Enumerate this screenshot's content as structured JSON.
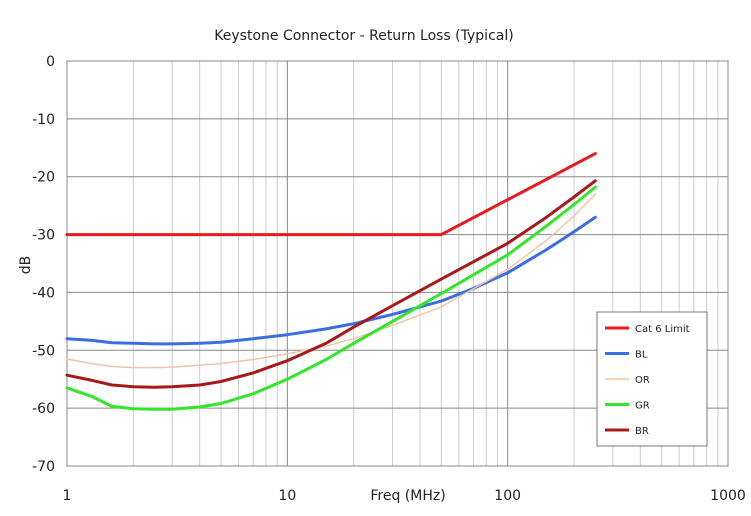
{
  "chart_data": {
    "type": "line",
    "title": "Keystone Connector  -  Return Loss (Typical)",
    "xlabel": "Freq (MHz)",
    "ylabel": "dB",
    "x_scale": "log",
    "xlim": [
      1,
      1000
    ],
    "ylim": [
      -70,
      0
    ],
    "x_ticks": [
      1,
      10,
      100,
      1000
    ],
    "x_tick_labels": [
      "1",
      "10",
      "100",
      "1000"
    ],
    "y_ticks": [
      0,
      -10,
      -20,
      -30,
      -40,
      -50,
      -60,
      -70
    ],
    "y_tick_labels": [
      "0",
      "-10",
      "-20",
      "-30",
      "-40",
      "-50",
      "-60",
      "-70"
    ],
    "grid": true,
    "legend_position": "bottom-right",
    "series": [
      {
        "name": "Cat 6 Limit",
        "color": "#e8191f",
        "x": [
          1,
          50,
          250
        ],
        "y": [
          -30,
          -30,
          -16
        ]
      },
      {
        "name": "BL",
        "color": "#3b6ee0",
        "x": [
          1,
          1.3,
          1.6,
          2,
          2.5,
          3,
          4,
          5,
          7,
          10,
          15,
          20,
          30,
          50,
          70,
          100,
          150,
          200,
          250
        ],
        "y": [
          -48,
          -48.3,
          -48.7,
          -48.8,
          -48.9,
          -48.9,
          -48.8,
          -48.6,
          -48,
          -47.3,
          -46.3,
          -45.4,
          -43.8,
          -41.5,
          -39.3,
          -36.6,
          -32.6,
          -29.5,
          -27
        ]
      },
      {
        "name": "OR",
        "color": "#f2c4a6",
        "x": [
          1,
          1.3,
          1.6,
          2,
          2.5,
          3,
          4,
          5,
          7,
          10,
          15,
          20,
          30,
          50,
          100,
          150,
          200,
          250
        ],
        "y": [
          -51.5,
          -52.3,
          -52.8,
          -53,
          -53,
          -52.9,
          -52.6,
          -52.3,
          -51.6,
          -50.6,
          -49.3,
          -48,
          -45.7,
          -42.5,
          -36,
          -31,
          -26.8,
          -23
        ]
      },
      {
        "name": "GR",
        "color": "#33e62b",
        "x": [
          1,
          1.3,
          1.6,
          2,
          2.5,
          3,
          4,
          5,
          7,
          10,
          15,
          20,
          30,
          50,
          100,
          150,
          200,
          250
        ],
        "y": [
          -56.5,
          -58,
          -59.7,
          -60.1,
          -60.2,
          -60.2,
          -59.8,
          -59.2,
          -57.5,
          -55,
          -51.6,
          -48.8,
          -45,
          -40.2,
          -33.5,
          -28.5,
          -24.8,
          -21.8
        ]
      },
      {
        "name": "BR",
        "color": "#a8191b",
        "x": [
          1,
          1.3,
          1.6,
          2,
          2.5,
          3,
          4,
          5,
          7,
          10,
          15,
          20,
          30,
          50,
          100,
          150,
          200,
          250
        ],
        "y": [
          -54.3,
          -55.2,
          -56,
          -56.3,
          -56.4,
          -56.3,
          -56,
          -55.4,
          -53.9,
          -51.8,
          -48.8,
          -46,
          -42.3,
          -37.7,
          -31.5,
          -27,
          -23.5,
          -20.7
        ]
      }
    ]
  }
}
